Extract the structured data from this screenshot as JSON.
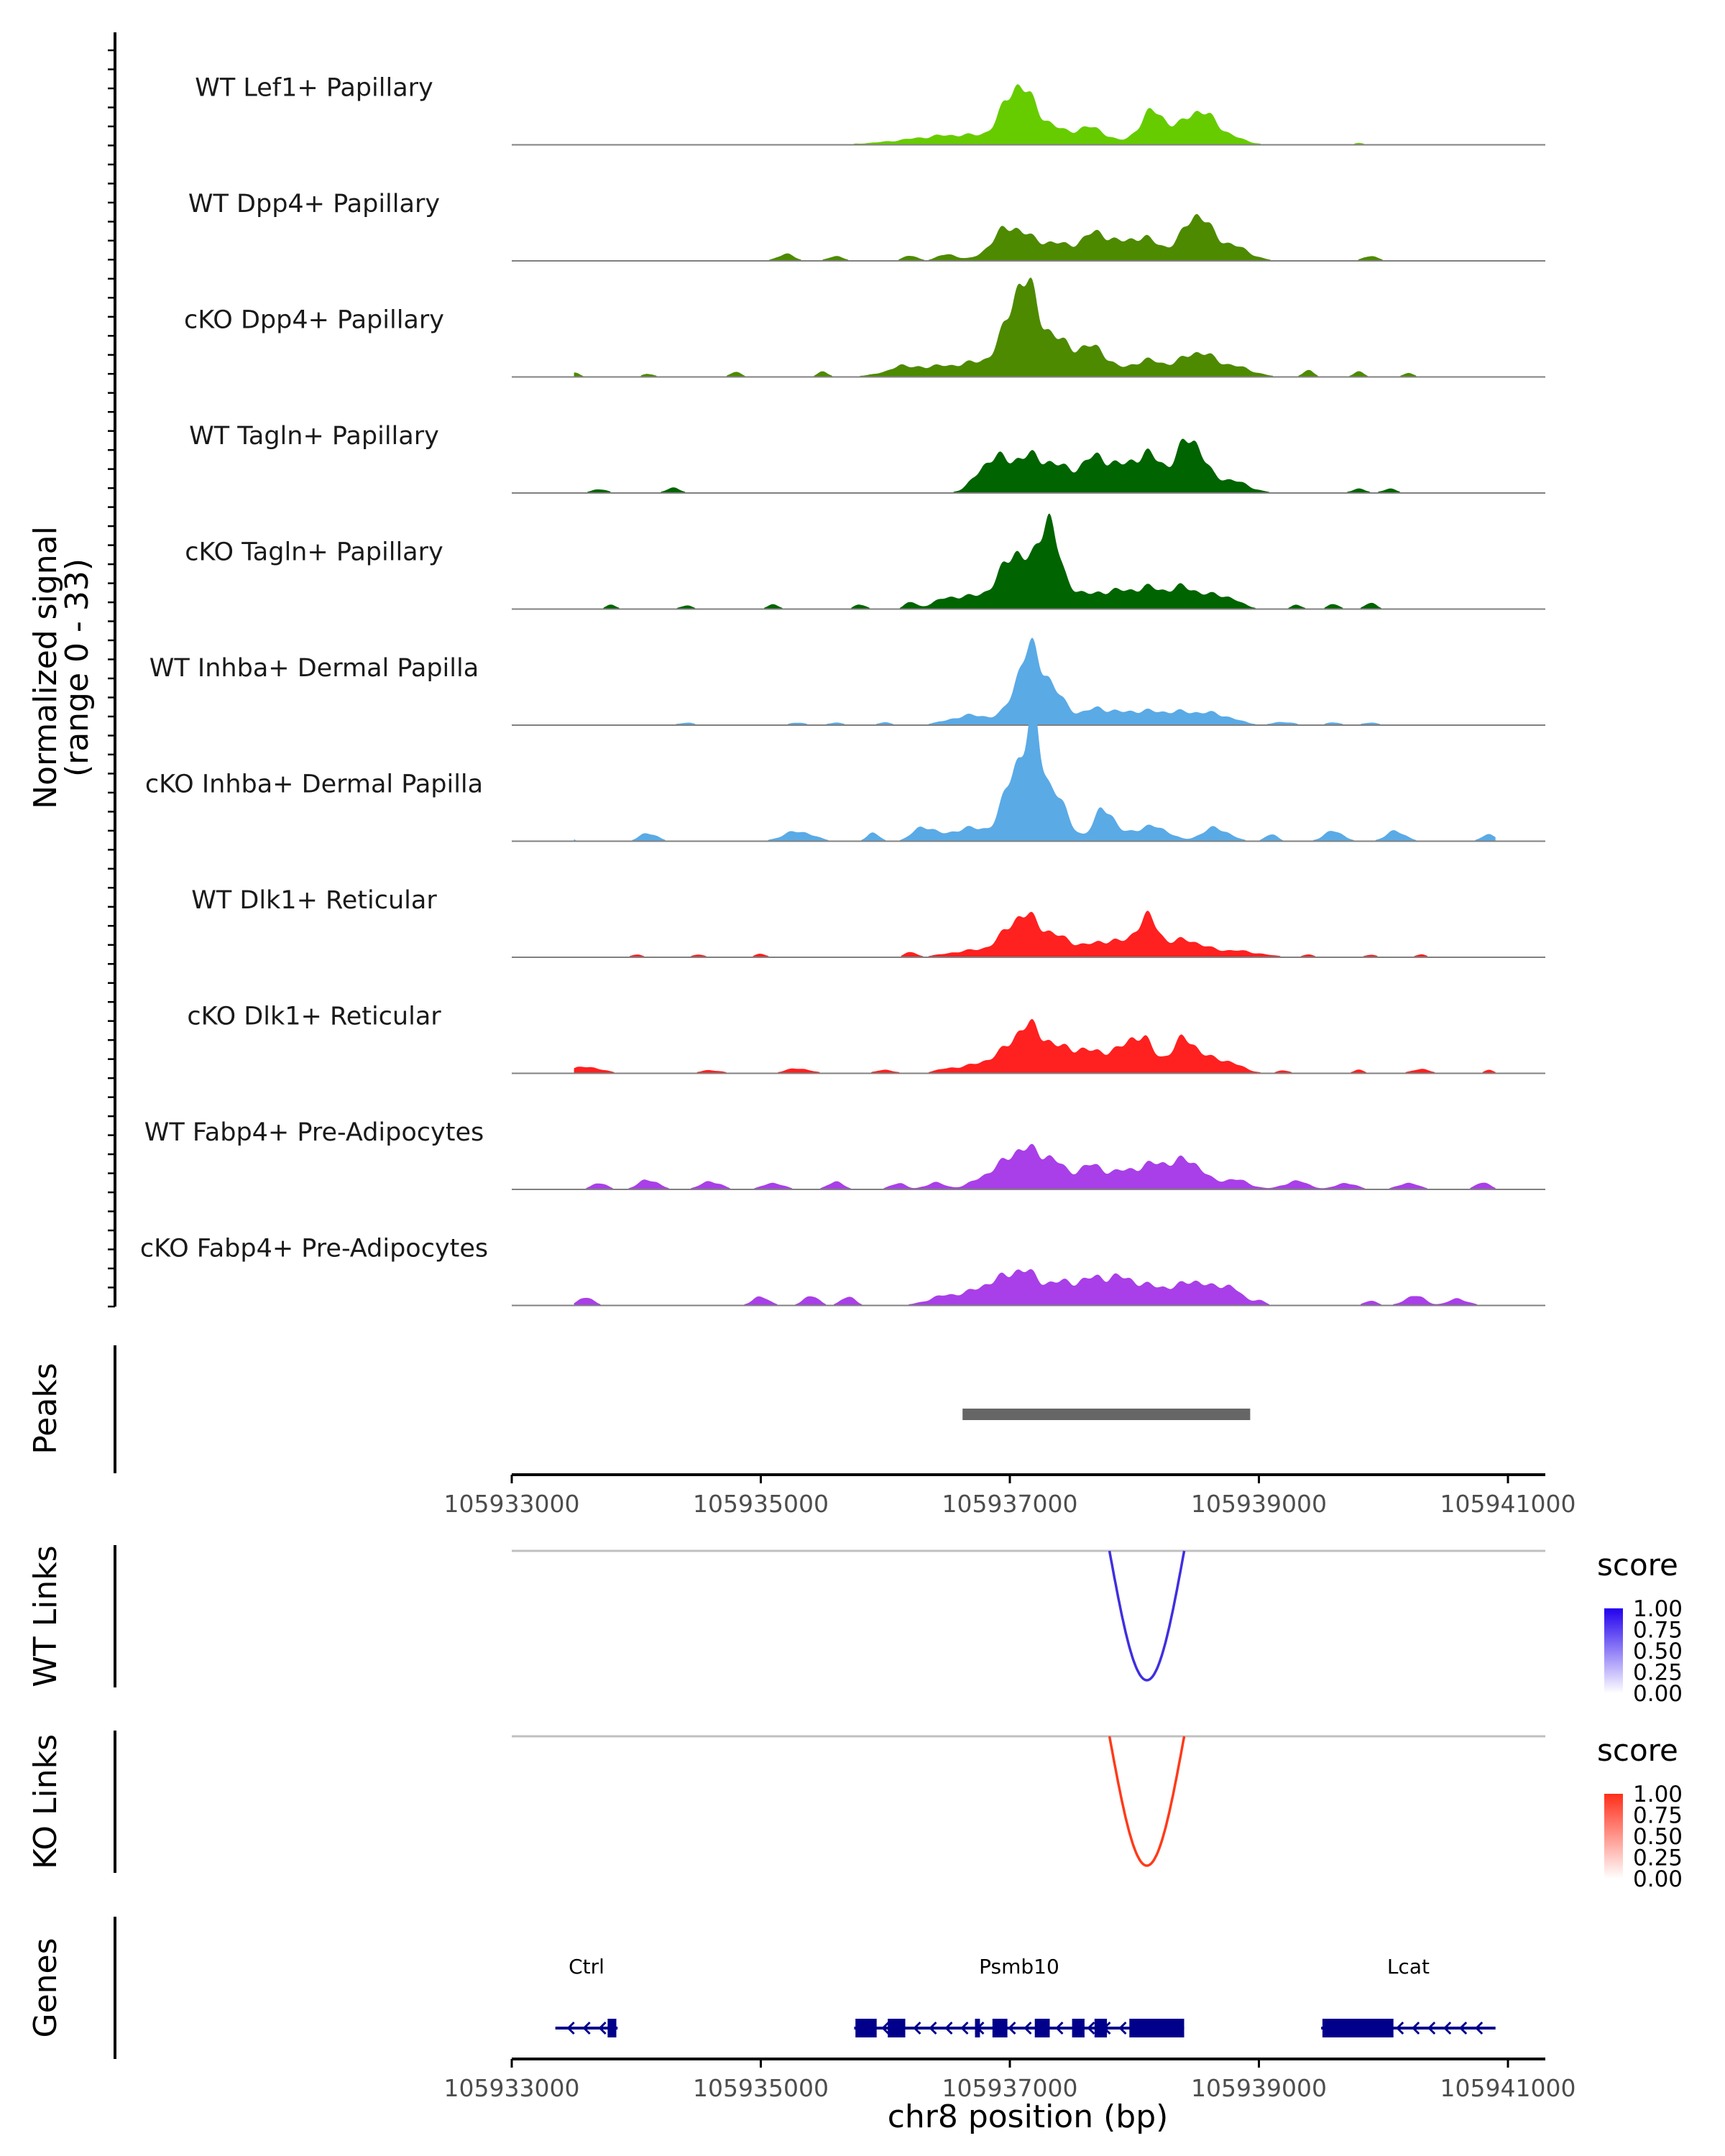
{
  "chart_data": {
    "type": "area",
    "title": "",
    "region": {
      "chrom": "chr8",
      "start": 105933000,
      "end": 105941300
    },
    "coverage": {
      "ylabel": "Normalized signal",
      "ylabel_range": "(range 0 - 33)",
      "ylim": [
        0,
        33
      ],
      "smooth_bins": 2,
      "tracks": [
        {
          "name": "WT Lef1+ Papillary",
          "color": "#66CC00",
          "noise_peaks": [
            [
              105933400,
              0.4
            ],
            [
              105935200,
              0.3
            ],
            [
              105939800,
              0.5
            ],
            [
              105940400,
              0.4
            ]
          ],
          "peaks": [
            [
              105936600,
              3,
              400
            ],
            [
              105937050,
              14,
              110
            ],
            [
              105937250,
              6,
              150
            ],
            [
              105937650,
              5,
              130
            ],
            [
              105938150,
              10,
              110
            ],
            [
              105938500,
              9,
              120
            ],
            [
              105938700,
              3,
              150
            ]
          ]
        },
        {
          "name": "WT Dpp4+ Papillary",
          "color": "#4D8A00",
          "noise_peaks": [
            [
              105935200,
              2,
              70
            ],
            [
              105935600,
              1.5,
              60
            ],
            [
              105936200,
              1.5,
              60
            ],
            [
              105936500,
              2,
              80
            ],
            [
              105939900,
              1.5,
              60
            ]
          ],
          "peaks": [
            [
              105937000,
              10,
              140
            ],
            [
              105937350,
              5,
              150
            ],
            [
              105937700,
              8,
              120
            ],
            [
              105938050,
              7,
              140
            ],
            [
              105938350,
              2,
              120
            ],
            [
              105938500,
              12,
              100
            ],
            [
              105938750,
              5,
              150
            ]
          ]
        },
        {
          "name": "cKO Dpp4+ Papillary",
          "color": "#4D8A00",
          "noise_peaks": [
            [
              105933500,
              1.2
            ],
            [
              105934100,
              1
            ],
            [
              105934800,
              1.5
            ],
            [
              105935500,
              1.5
            ],
            [
              105936100,
              1.5
            ],
            [
              105939400,
              2
            ],
            [
              105939800,
              1.5
            ],
            [
              105940200,
              1.2
            ]
          ],
          "peaks": [
            [
              105936300,
              3,
              250
            ],
            [
              105936800,
              4,
              200
            ],
            [
              105937100,
              26,
              120
            ],
            [
              105937400,
              10,
              160
            ],
            [
              105937700,
              7,
              100
            ],
            [
              105938100,
              5,
              150
            ],
            [
              105938500,
              7,
              130
            ],
            [
              105938800,
              3,
              150
            ]
          ]
        },
        {
          "name": "WT Tagln+ Papillary",
          "color": "#006400",
          "noise_peaks": [
            [
              105933700,
              1.2,
              60
            ],
            [
              105934300,
              1.5,
              60
            ],
            [
              105939800,
              1.2,
              60
            ],
            [
              105940050,
              1.2,
              60
            ]
          ],
          "peaks": [
            [
              105936850,
              9,
              120
            ],
            [
              105937150,
              10,
              150
            ],
            [
              105937450,
              6,
              150
            ],
            [
              105937700,
              8,
              100
            ],
            [
              105937950,
              7,
              150
            ],
            [
              105938150,
              8,
              120
            ],
            [
              105938450,
              16,
              100
            ],
            [
              105938750,
              4,
              150
            ]
          ]
        },
        {
          "name": "cKO Tagln+ Papillary",
          "color": "#006400",
          "noise_peaks": [
            [
              105933300,
              2,
              40
            ],
            [
              105933800,
              1.2
            ],
            [
              105934400,
              1.2
            ],
            [
              105935100,
              1.5
            ],
            [
              105935800,
              1.5
            ],
            [
              105936200,
              2
            ],
            [
              105939300,
              1.2
            ],
            [
              105939600,
              1.5
            ],
            [
              105939900,
              2
            ]
          ],
          "peaks": [
            [
              105936500,
              3,
              120
            ],
            [
              105936800,
              4,
              150
            ],
            [
              105937050,
              16,
              110
            ],
            [
              105937300,
              21,
              70
            ],
            [
              105937400,
              8,
              150
            ],
            [
              105937800,
              5,
              130
            ],
            [
              105938100,
              6,
              130
            ],
            [
              105938400,
              6,
              120
            ],
            [
              105938700,
              4,
              130
            ]
          ]
        },
        {
          "name": "WT Inhba+ Dermal Papilla",
          "color": "#5AAAE6",
          "noise_peaks": [
            [
              105934400,
              0.8,
              60
            ],
            [
              105935300,
              0.8,
              60
            ],
            [
              105935600,
              0.8,
              60
            ],
            [
              105936000,
              0.8,
              60
            ],
            [
              105939200,
              1,
              80
            ],
            [
              105939600,
              0.8,
              60
            ],
            [
              105939900,
              0.8,
              60
            ]
          ],
          "peaks": [
            [
              105936700,
              3,
              180
            ],
            [
              105937150,
              20,
              110
            ],
            [
              105937350,
              8,
              130
            ],
            [
              105937700,
              4,
              100
            ],
            [
              105938000,
              4,
              180
            ],
            [
              105938350,
              3,
              160
            ],
            [
              105938650,
              3,
              160
            ]
          ]
        },
        {
          "name": "cKO Inhba+ Dermal Papilla",
          "color": "#5AAAE6",
          "noise_peaks": [
            [
              105933400,
              4,
              50
            ],
            [
              105934100,
              2.5,
              70
            ],
            [
              105935300,
              3,
              120
            ],
            [
              105935900,
              2.5,
              50
            ],
            [
              105936300,
              4,
              80
            ],
            [
              105938200,
              3,
              100
            ],
            [
              105938650,
              4,
              110
            ],
            [
              105939100,
              2,
              50
            ],
            [
              105939600,
              3,
              80
            ],
            [
              105940100,
              3,
              80
            ],
            [
              105940850,
              2,
              60
            ]
          ],
          "peaks": [
            [
              105936700,
              4,
              200
            ],
            [
              105937050,
              22,
              90
            ],
            [
              105937200,
              26,
              60
            ],
            [
              105937350,
              14,
              110
            ],
            [
              105937750,
              10,
              70
            ],
            [
              105938000,
              3,
              150
            ]
          ]
        },
        {
          "name": "WT Dlk1+ Reticular",
          "color": "#FF2020",
          "noise_peaks": [
            [
              105933400,
              1
            ],
            [
              105934000,
              0.8
            ],
            [
              105934500,
              0.8
            ],
            [
              105935000,
              1
            ],
            [
              105936200,
              1.5
            ],
            [
              105939400,
              0.8
            ],
            [
              105939900,
              0.8
            ],
            [
              105940300,
              0.8
            ]
          ],
          "peaks": [
            [
              105936700,
              2,
              200
            ],
            [
              105937100,
              12,
              140
            ],
            [
              105937400,
              5,
              140
            ],
            [
              105937800,
              5,
              150
            ],
            [
              105938100,
              11,
              90
            ],
            [
              105938400,
              5,
              140
            ],
            [
              105938800,
              2,
              200
            ]
          ]
        },
        {
          "name": "cKO Dlk1+ Reticular",
          "color": "#FF2020",
          "noise_peaks": [
            [
              105933600,
              2,
              120
            ],
            [
              105934600,
              1,
              80
            ],
            [
              105935300,
              1.5,
              100
            ],
            [
              105936000,
              1,
              80
            ],
            [
              105936500,
              1.2,
              100
            ],
            [
              105939200,
              1
            ],
            [
              105939800,
              1
            ],
            [
              105940300,
              1.2,
              80
            ],
            [
              105940850,
              1,
              40
            ]
          ],
          "peaks": [
            [
              105936800,
              3,
              150
            ],
            [
              105937150,
              14,
              150
            ],
            [
              105937500,
              6,
              130
            ],
            [
              105937800,
              6,
              150
            ],
            [
              105938050,
              10,
              100
            ],
            [
              105938400,
              10,
              110
            ],
            [
              105938700,
              4,
              140
            ]
          ]
        },
        {
          "name": "WT Fabp4+ Pre-Adipocytes",
          "color": "#A93FE8",
          "noise_peaks": [
            [
              105933300,
              3,
              60
            ],
            [
              105933700,
              2,
              60
            ],
            [
              105934100,
              3,
              80
            ],
            [
              105934600,
              2.5,
              80
            ],
            [
              105935100,
              2,
              80
            ],
            [
              105935600,
              2.5,
              60
            ],
            [
              105936100,
              2,
              60
            ],
            [
              105936400,
              2,
              80
            ],
            [
              105939300,
              2.5,
              100
            ],
            [
              105939700,
              2,
              80
            ],
            [
              105940200,
              2,
              80
            ],
            [
              105940800,
              2,
              60
            ]
          ],
          "peaks": [
            [
              105936800,
              3,
              120
            ],
            [
              105937100,
              12,
              150
            ],
            [
              105937350,
              6,
              100
            ],
            [
              105937650,
              7,
              120
            ],
            [
              105937950,
              5,
              120
            ],
            [
              105938200,
              7,
              120
            ],
            [
              105938450,
              8,
              110
            ],
            [
              105938800,
              3,
              120
            ]
          ]
        },
        {
          "name": "cKO Fabp4+ Pre-Adipocytes",
          "color": "#A93FE8",
          "noise_peaks": [
            [
              105933600,
              2.5,
              60
            ],
            [
              105935000,
              2.5,
              70
            ],
            [
              105935400,
              3,
              60
            ],
            [
              105935700,
              2.5,
              60
            ],
            [
              105939000,
              1.5,
              50
            ],
            [
              105939900,
              1.5,
              50
            ],
            [
              105940250,
              3,
              80
            ],
            [
              105940600,
              2,
              80
            ]
          ],
          "peaks": [
            [
              105936500,
              3,
              150
            ],
            [
              105936850,
              6,
              140
            ],
            [
              105937100,
              9,
              120
            ],
            [
              105937400,
              6,
              140
            ],
            [
              105937700,
              7,
              140
            ],
            [
              105937950,
              6,
              130
            ],
            [
              105938250,
              5,
              150
            ],
            [
              105938500,
              6,
              100
            ],
            [
              105938750,
              6,
              100
            ]
          ]
        }
      ]
    },
    "peaks_track": {
      "label": "Peaks",
      "color": "#666666",
      "regions": [
        [
          105936620,
          105938930
        ]
      ]
    },
    "links": [
      {
        "label": "WT Links",
        "color": "#3F2FE0",
        "legend": {
          "title": "score",
          "ticks": [
            "1.00",
            "0.75",
            "0.50",
            "0.25",
            "0.00"
          ],
          "color_high": "#2200EE",
          "color_low": "#FFFFFF"
        },
        "arcs": [
          {
            "start": 105937800,
            "end": 105938400,
            "score": 0.8
          }
        ]
      },
      {
        "label": "KO Links",
        "color": "#FF3A1A",
        "legend": {
          "title": "score",
          "ticks": [
            "1.00",
            "0.75",
            "0.50",
            "0.25",
            "0.00"
          ],
          "color_high": "#FF2E1A",
          "color_low": "#FFFFFF"
        },
        "arcs": [
          {
            "start": 105937800,
            "end": 105938400,
            "score": 0.8
          }
        ]
      }
    ],
    "genes_track": {
      "label": "Genes",
      "color": "#00008B",
      "genes": [
        {
          "name": "Ctrl",
          "start": 105933350,
          "end": 105933850,
          "strand": "-",
          "exons": [
            [
              105933770,
              105933840
            ]
          ]
        },
        {
          "name": "Psmb10",
          "start": 105935750,
          "end": 105938400,
          "strand": "-",
          "exons": [
            [
              105935760,
              105935930
            ],
            [
              105936020,
              105936160
            ],
            [
              105936720,
              105936760
            ],
            [
              105936860,
              105936980
            ],
            [
              105937200,
              105937320
            ],
            [
              105937500,
              105937600
            ],
            [
              105937680,
              105937780
            ],
            [
              105937960,
              105938400
            ]
          ]
        },
        {
          "name": "Lcat",
          "start": 105939500,
          "end": 105940900,
          "strand": "-",
          "exons": [
            [
              105939510,
              105940080
            ]
          ]
        }
      ]
    },
    "x_axis": {
      "label": "chr8 position (bp)",
      "ticks": [
        105933000,
        105935000,
        105937000,
        105939000,
        105941000
      ],
      "tick_labels": [
        "105933000",
        "105935000",
        "105937000",
        "105939000",
        "105941000"
      ]
    }
  }
}
